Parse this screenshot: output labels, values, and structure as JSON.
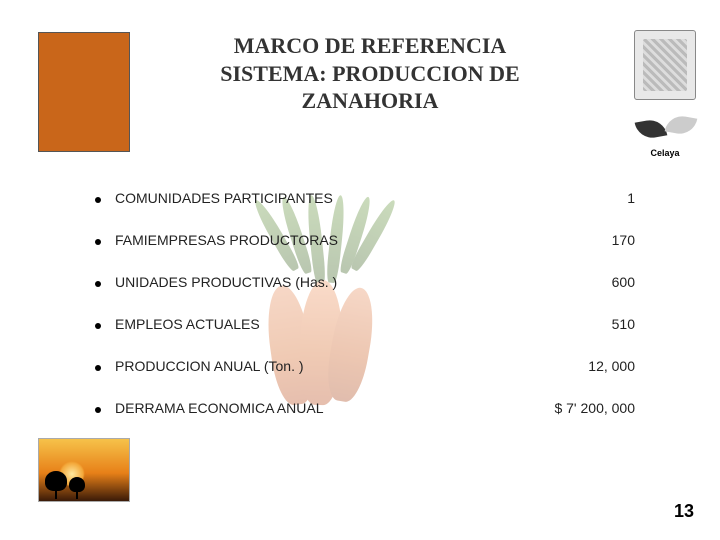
{
  "title": {
    "line1": "MARCO DE REFERENCIA",
    "line2": "SISTEMA: PRODUCCION DE",
    "line3": "ZANAHORIA",
    "font_size_pt": 22,
    "color": "#333333"
  },
  "logo_caption": "Celaya",
  "rows": [
    {
      "label": "COMUNIDADES PARTICIPANTES",
      "value": "1"
    },
    {
      "label": "FAMIEMPRESAS PRODUCTORAS",
      "value": "170"
    },
    {
      "label": "UNIDADES PRODUCTIVAS (Has. )",
      "value": "600"
    },
    {
      "label": "EMPLEOS ACTUALES",
      "value": "510"
    },
    {
      "label": "PRODUCCION ANUAL (Ton. )",
      "value": "12, 000"
    },
    {
      "label": "DERRAMA ECONOMICA  ANUAL",
      "value": "$ 7' 200, 000"
    }
  ],
  "row_label_font_size_pt": 14,
  "row_value_font_size_pt": 14,
  "page_number": "13",
  "page_number_font_size_pt": 18,
  "colors": {
    "orange_box": "#c9661a",
    "background": "#ffffff",
    "text": "#222222",
    "bullet": "#000000"
  }
}
